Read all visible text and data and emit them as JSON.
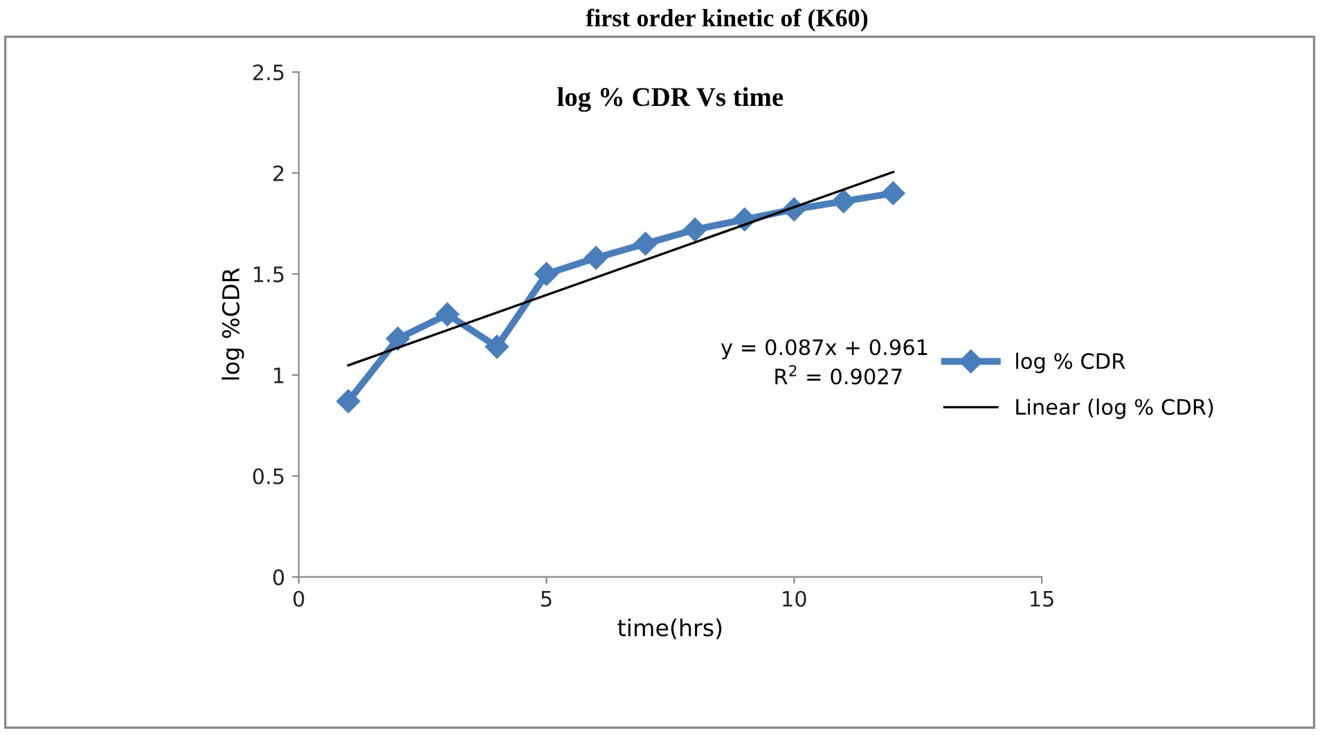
{
  "chart_data": {
    "type": "line",
    "title": "log % CDR Vs time",
    "subtitle": "first order kinetic of (K60)",
    "xlabel": "time(hrs)",
    "ylabel": "log %CDR",
    "x": [
      1,
      2,
      3,
      4,
      5,
      6,
      7,
      8,
      9,
      10,
      11,
      12
    ],
    "series": [
      {
        "name": "log % CDR",
        "color": "#4a7ebb",
        "values": [
          0.87,
          1.18,
          1.3,
          1.14,
          1.5,
          1.58,
          1.65,
          1.72,
          1.77,
          1.82,
          1.86,
          1.9
        ],
        "marker": "diamond"
      },
      {
        "name": "Linear (log % CDR)",
        "color": "#000000",
        "type": "line",
        "x": [
          1,
          12
        ],
        "values": [
          1.048,
          2.005
        ],
        "marker": "none"
      }
    ],
    "annotations": [
      "y = 0.087x + 0.961",
      "R$^{2}$ = 0.9027"
    ],
    "xlim": [
      0,
      15
    ],
    "xticks": [
      0,
      5,
      10,
      15
    ],
    "ylim": [
      0,
      2.5
    ],
    "yticks": [
      0,
      0.5,
      1,
      1.5,
      2,
      2.5
    ],
    "grid": false,
    "legend": "right",
    "line_style": "solid"
  }
}
